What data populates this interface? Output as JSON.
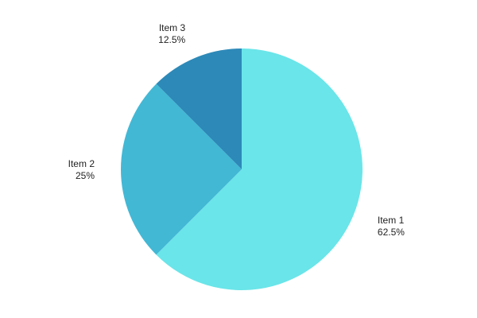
{
  "chart_data": {
    "type": "pie",
    "start_angle_deg": 0,
    "direction": "clockwise",
    "slices": [
      {
        "label": "Item 1",
        "value": 62.5,
        "percent_label": "62.5%",
        "color": "#6ae5e9"
      },
      {
        "label": "Item 2",
        "value": 25,
        "percent_label": "25%",
        "color": "#42b8d5"
      },
      {
        "label": "Item 3",
        "value": 12.5,
        "percent_label": "12.5%",
        "color": "#2d89b8"
      }
    ],
    "legend": "none",
    "labels_position": "outside"
  }
}
